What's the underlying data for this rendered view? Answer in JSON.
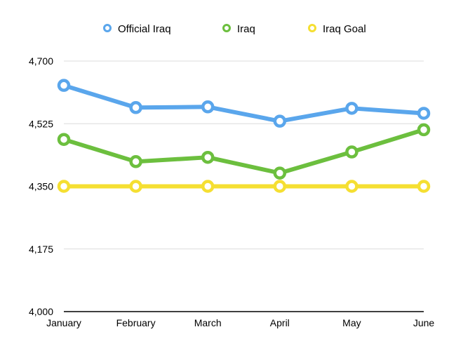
{
  "chart_data": {
    "type": "line",
    "title": "",
    "xlabel": "",
    "ylabel": "",
    "categories": [
      "January",
      "February",
      "March",
      "April",
      "May",
      "June"
    ],
    "ylim": [
      4000,
      4700
    ],
    "yticks": [
      4000,
      4175,
      4350,
      4525,
      4700
    ],
    "ytick_labels": [
      "4,000",
      "4,175",
      "4,350",
      "4,525",
      "4,700"
    ],
    "grid": true,
    "legend_position": "top",
    "series": [
      {
        "name": "Official Iraq",
        "color": "#5AA6EC",
        "values": [
          4632,
          4570,
          4572,
          4532,
          4568,
          4554
        ]
      },
      {
        "name": "Iraq",
        "color": "#6CBF3E",
        "values": [
          4481,
          4419,
          4431,
          4387,
          4446,
          4508
        ]
      },
      {
        "name": "Iraq Goal",
        "color": "#F5DF32",
        "values": [
          4350,
          4350,
          4350,
          4350,
          4350,
          4350
        ]
      }
    ]
  }
}
